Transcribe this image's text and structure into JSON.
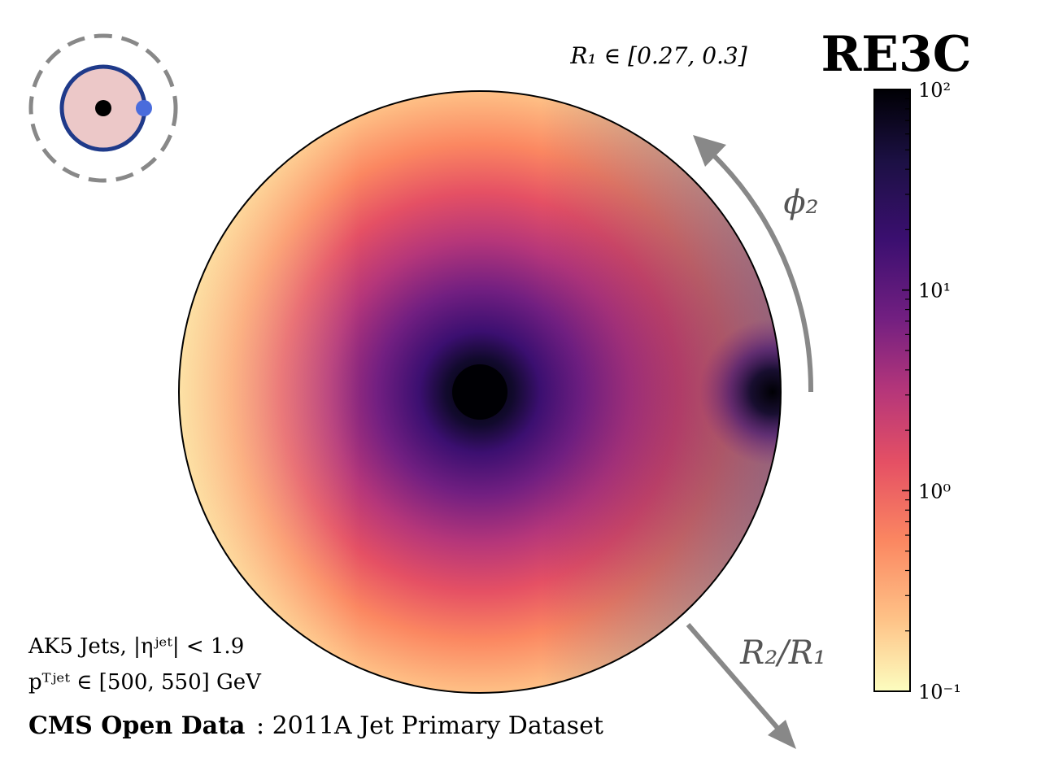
{
  "chart_data": {
    "type": "heatmap",
    "projection": "polar",
    "title": "RE3C",
    "subtitle": "R₁ ∈ [0.27, 0.3]",
    "angular_label": "ϕ₂",
    "radial_label": "R₂/R₁",
    "colorbar": {
      "scale": "log",
      "range": [
        0.1,
        100
      ],
      "ticks": [
        "10⁻¹",
        "10⁰",
        "10¹",
        "10²"
      ],
      "tick_values": [
        0.1,
        1,
        10,
        100
      ],
      "colormap": "magma_r"
    },
    "features": [
      {
        "label": "center hotspot",
        "value_approx": 100
      },
      {
        "label": "right-edge hotspot",
        "value_approx": 100
      },
      {
        "label": "left edge",
        "value_approx": 0.15
      }
    ],
    "annotations": {
      "jets_line": "AK5 Jets, |ηʲᵉᵗ| < 1.9",
      "pt_line": "pᵀʲᵉᵗ ∈ [500, 550] GeV",
      "dataset_bold": "CMS Open Data",
      "dataset_rest": ": 2011A Jet Primary Dataset"
    },
    "inset_icon": "three-point-correlator-diagram-icon",
    "colors": {
      "arrow": "#888888",
      "icon_ring": "#1f3a8a",
      "icon_fill": "#ecc8c8",
      "icon_point": "#4a6cdc"
    }
  }
}
